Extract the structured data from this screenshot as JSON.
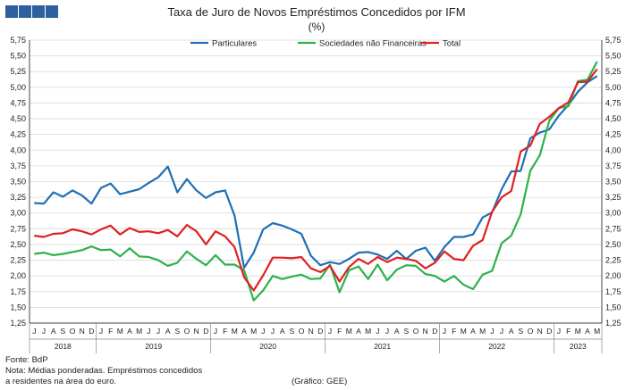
{
  "header_block_colors": [
    "#2e5f9e",
    "#2e5f9e",
    "#2e5f9e",
    "#2e5f9e"
  ],
  "chart_data": {
    "type": "line",
    "title": "Taxa de Juro de Novos Empréstimos Concedidos por IFM",
    "subtitle": "(%)",
    "ylim": [
      1.25,
      5.75
    ],
    "y_ticks": [
      "1,25",
      "1,50",
      "1,75",
      "2,00",
      "2,25",
      "2,50",
      "2,75",
      "3,00",
      "3,25",
      "3,50",
      "3,75",
      "4,00",
      "4,25",
      "4,50",
      "4,75",
      "5,00",
      "5,25",
      "5,50",
      "5,75"
    ],
    "grid": true,
    "legend_position": "top",
    "month_labels": [
      "J",
      "J",
      "A",
      "S",
      "O",
      "N",
      "D",
      "J",
      "F",
      "M",
      "A",
      "M",
      "J",
      "J",
      "A",
      "S",
      "O",
      "N",
      "D",
      "J",
      "F",
      "M",
      "A",
      "M",
      "J",
      "J",
      "A",
      "S",
      "O",
      "N",
      "D",
      "J",
      "F",
      "M",
      "A",
      "M",
      "J",
      "J",
      "A",
      "S",
      "O",
      "N",
      "D",
      "J",
      "F",
      "M",
      "A",
      "M",
      "J",
      "J",
      "A",
      "S",
      "O",
      "N",
      "D",
      "J",
      "F",
      "M",
      "A",
      "M"
    ],
    "year_groups": [
      {
        "label": "2018",
        "start": 0,
        "end": 7
      },
      {
        "label": "2019",
        "start": 7,
        "end": 19
      },
      {
        "label": "2020",
        "start": 19,
        "end": 31
      },
      {
        "label": "2021",
        "start": 31,
        "end": 43
      },
      {
        "label": "2022",
        "start": 43,
        "end": 55
      },
      {
        "label": "2023",
        "start": 55,
        "end": 60
      }
    ],
    "series": [
      {
        "name": "Particulares",
        "color": "#1f6fb5",
        "values": [
          3.16,
          3.15,
          3.33,
          3.26,
          3.36,
          3.28,
          3.15,
          3.4,
          3.47,
          3.3,
          3.34,
          3.38,
          3.48,
          3.57,
          3.74,
          3.33,
          3.54,
          3.36,
          3.24,
          3.33,
          3.36,
          2.96,
          2.13,
          2.37,
          2.74,
          2.84,
          2.8,
          2.74,
          2.67,
          2.32,
          2.17,
          2.22,
          2.19,
          2.27,
          2.37,
          2.38,
          2.34,
          2.27,
          2.4,
          2.27,
          2.4,
          2.45,
          2.24,
          2.46,
          2.62,
          2.62,
          2.66,
          2.93,
          3.01,
          3.38,
          3.66,
          3.67,
          4.19,
          4.28,
          4.33,
          4.55,
          4.72,
          4.93,
          5.08,
          5.18
        ]
      },
      {
        "name": "Sociedades não Financeiras",
        "color": "#2db14a",
        "values": [
          2.35,
          2.37,
          2.33,
          2.35,
          2.38,
          2.41,
          2.47,
          2.41,
          2.42,
          2.31,
          2.44,
          2.31,
          2.3,
          2.25,
          2.16,
          2.21,
          2.39,
          2.27,
          2.17,
          2.33,
          2.18,
          2.18,
          2.09,
          1.61,
          1.77,
          2.0,
          1.95,
          1.99,
          2.02,
          1.95,
          1.96,
          2.18,
          1.74,
          2.09,
          2.15,
          1.95,
          2.18,
          1.93,
          2.1,
          2.17,
          2.16,
          2.03,
          2.0,
          1.91,
          2.0,
          1.86,
          1.79,
          2.02,
          2.08,
          2.52,
          2.64,
          2.98,
          3.67,
          3.92,
          4.47,
          4.67,
          4.7,
          5.1,
          5.12,
          5.41
        ]
      },
      {
        "name": "Total",
        "color": "#e02020",
        "values": [
          2.64,
          2.62,
          2.67,
          2.68,
          2.74,
          2.71,
          2.66,
          2.74,
          2.8,
          2.66,
          2.76,
          2.7,
          2.71,
          2.68,
          2.73,
          2.63,
          2.81,
          2.71,
          2.5,
          2.71,
          2.63,
          2.46,
          1.98,
          1.77,
          2.01,
          2.29,
          2.29,
          2.28,
          2.3,
          2.12,
          2.06,
          2.16,
          1.91,
          2.14,
          2.27,
          2.19,
          2.3,
          2.22,
          2.29,
          2.27,
          2.24,
          2.12,
          2.21,
          2.39,
          2.27,
          2.25,
          2.48,
          2.57,
          3.02,
          3.25,
          3.35,
          3.98,
          4.07,
          4.42,
          4.53,
          4.67,
          4.76,
          5.08,
          5.09,
          5.29
        ]
      }
    ]
  },
  "footer": {
    "line1": "Fonte: BdP",
    "line2": "Nota: Médias ponderadas. Empréstimos concedidos",
    "line3": "a residentes na área do euro.",
    "credit": "(Gráfico: GEE)"
  }
}
